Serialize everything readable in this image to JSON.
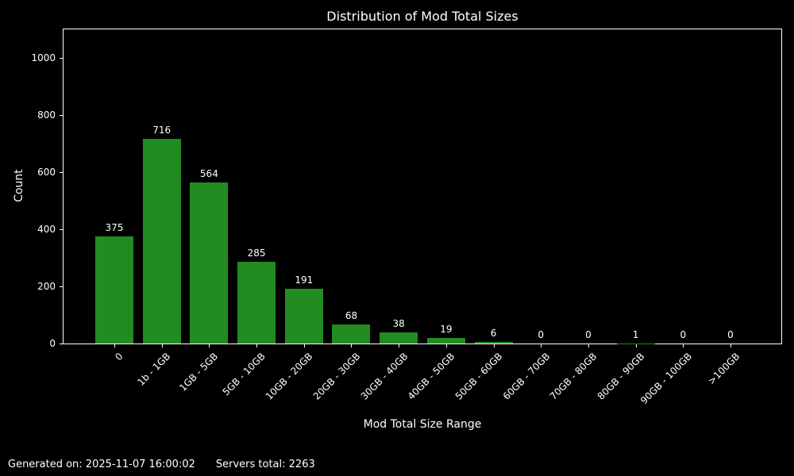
{
  "chart_data": {
    "type": "bar",
    "title": "Distribution of Mod Total Sizes",
    "xlabel": "Mod Total Size Range",
    "ylabel": "Count",
    "categories": [
      "0",
      "1b - 1GB",
      "1GB - 5GB",
      "5GB - 10GB",
      "10GB - 20GB",
      "20GB - 30GB",
      "30GB - 40GB",
      "40GB - 50GB",
      "50GB - 60GB",
      "60GB - 70GB",
      "70GB - 80GB",
      "80GB - 90GB",
      "90GB - 100GB",
      ">100GB"
    ],
    "values": [
      375,
      716,
      564,
      285,
      191,
      68,
      38,
      19,
      6,
      0,
      0,
      1,
      0,
      0
    ],
    "ylim": [
      0,
      1100
    ],
    "yticks": [
      0,
      200,
      400,
      600,
      800,
      1000
    ],
    "bar_color": "#228B22",
    "background_color": "#000000",
    "text_color": "#ffffff",
    "axis_color": "#ffffff",
    "grid": false,
    "legend": "none",
    "xtick_rotation_deg": 45
  },
  "footer": {
    "generated_on": "Generated on: 2025-11-07 16:00:02",
    "servers_total": "Servers total: 2263"
  }
}
